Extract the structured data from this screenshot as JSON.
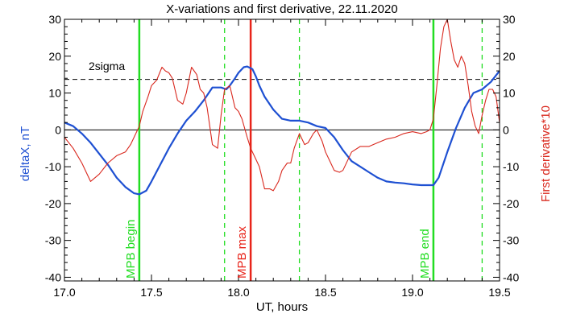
{
  "chart_data": {
    "type": "line",
    "title": "X-variations and first derivative, 22.11.2020",
    "xlabel": "UT, hours",
    "ylabel_left": "deltaX, nT",
    "ylabel_right": "First derivative*10",
    "xlim": [
      17.0,
      19.5
    ],
    "ylim": [
      -41,
      30
    ],
    "xticks": [
      "17.0",
      "17.5",
      "18.0",
      "18.5",
      "19.0",
      "19.5"
    ],
    "yticks": [
      "30",
      "20",
      "10",
      "0",
      "-10",
      "-20",
      "-30",
      "-40"
    ],
    "annotations": {
      "sigma_label": "2sigma",
      "sigma_level": 13.7,
      "zero_level": 0
    },
    "colors": {
      "deltax": "#1e50d2",
      "derivative": "#d9281e",
      "mpb_begin_end": "#22dd22",
      "mpb_max": "#e8241a"
    },
    "markers": [
      {
        "x": 17.43,
        "label": "MPB begin",
        "color": "#22dd22",
        "style": "solid"
      },
      {
        "x": 17.92,
        "label": "",
        "color": "#22dd22",
        "style": "dashed"
      },
      {
        "x": 18.07,
        "label": "MPB max",
        "color": "#e8241a",
        "style": "solid"
      },
      {
        "x": 18.35,
        "label": "",
        "color": "#22dd22",
        "style": "dashed"
      },
      {
        "x": 19.12,
        "label": "MPB end",
        "color": "#22dd22",
        "style": "solid"
      },
      {
        "x": 19.4,
        "label": "",
        "color": "#22dd22",
        "style": "dashed"
      }
    ],
    "series": [
      {
        "name": "deltaX, nT",
        "color": "#1e50d2",
        "x": [
          17.0,
          17.05,
          17.1,
          17.15,
          17.2,
          17.25,
          17.3,
          17.35,
          17.4,
          17.43,
          17.47,
          17.5,
          17.55,
          17.6,
          17.65,
          17.7,
          17.75,
          17.8,
          17.85,
          17.9,
          17.93,
          17.95,
          17.98,
          18.0,
          18.03,
          18.05,
          18.08,
          18.1,
          18.12,
          18.15,
          18.2,
          18.25,
          18.3,
          18.35,
          18.4,
          18.45,
          18.5,
          18.55,
          18.6,
          18.65,
          18.7,
          18.75,
          18.8,
          18.85,
          18.9,
          18.95,
          19.0,
          19.05,
          19.1,
          19.12,
          19.15,
          19.2,
          19.25,
          19.3,
          19.35,
          19.4,
          19.45,
          19.5
        ],
        "y": [
          2.0,
          1.0,
          -1.0,
          -3.5,
          -6.5,
          -9.5,
          -13.0,
          -15.5,
          -17.2,
          -17.5,
          -16.5,
          -14.0,
          -9.5,
          -5.0,
          -1.0,
          2.5,
          5.0,
          8.0,
          11.5,
          11.5,
          11.0,
          12.0,
          14.0,
          15.5,
          17.0,
          17.2,
          16.5,
          14.5,
          12.0,
          9.0,
          5.5,
          3.0,
          2.5,
          2.5,
          2.0,
          1.0,
          0.5,
          -2.0,
          -5.5,
          -8.5,
          -10.0,
          -11.5,
          -13.0,
          -14.0,
          -14.3,
          -14.5,
          -14.8,
          -15.0,
          -15.0,
          -15.0,
          -13.0,
          -6.0,
          0.5,
          6.0,
          10.0,
          11.0,
          13.0,
          16.0
        ]
      },
      {
        "name": "First derivative*10",
        "color": "#d9281e",
        "x": [
          17.0,
          17.05,
          17.1,
          17.15,
          17.2,
          17.25,
          17.3,
          17.35,
          17.38,
          17.4,
          17.43,
          17.45,
          17.48,
          17.5,
          17.53,
          17.56,
          17.58,
          17.6,
          17.62,
          17.65,
          17.68,
          17.7,
          17.73,
          17.76,
          17.78,
          17.8,
          17.82,
          17.85,
          17.88,
          17.9,
          17.92,
          17.95,
          17.98,
          18.0,
          18.02,
          18.05,
          18.07,
          18.1,
          18.12,
          18.15,
          18.18,
          18.2,
          18.23,
          18.25,
          18.28,
          18.3,
          18.32,
          18.35,
          18.38,
          18.4,
          18.43,
          18.45,
          18.48,
          18.5,
          18.53,
          18.55,
          18.58,
          18.6,
          18.65,
          18.7,
          18.75,
          18.8,
          18.85,
          18.9,
          18.95,
          19.0,
          19.05,
          19.08,
          19.1,
          19.12,
          19.14,
          19.16,
          19.18,
          19.2,
          19.22,
          19.24,
          19.26,
          19.28,
          19.3,
          19.32,
          19.34,
          19.36,
          19.38,
          19.4,
          19.42,
          19.44,
          19.46,
          19.48,
          19.5
        ],
        "y": [
          -2.0,
          -5.0,
          -9.0,
          -14.0,
          -12.0,
          -9.0,
          -7.0,
          -6.0,
          -4.0,
          -2.0,
          1.0,
          5.0,
          9.0,
          12.0,
          13.5,
          17.0,
          16.0,
          15.5,
          14.0,
          8.0,
          7.0,
          10.0,
          17.0,
          15.0,
          11.0,
          10.0,
          6.0,
          -4.0,
          -5.0,
          4.0,
          11.0,
          12.0,
          6.0,
          5.0,
          3.0,
          -2.0,
          -5.0,
          -8.0,
          -10.0,
          -16.0,
          -16.0,
          -16.5,
          -14.0,
          -11.0,
          -9.0,
          -9.0,
          -5.0,
          -1.0,
          -4.0,
          -3.5,
          -1.0,
          0.0,
          -3.0,
          -6.0,
          -9.0,
          -11.0,
          -11.5,
          -11.0,
          -6.0,
          -4.5,
          -4.5,
          -3.5,
          -2.5,
          -2.0,
          -1.0,
          -0.5,
          -1.0,
          -0.5,
          0.0,
          3.0,
          12.0,
          22.0,
          28.0,
          30.0,
          24.0,
          19.0,
          17.0,
          20.0,
          18.0,
          12.0,
          5.0,
          1.0,
          -1.0,
          4.0,
          8.0,
          11.0,
          11.0,
          9.0,
          2.0
        ]
      }
    ]
  }
}
